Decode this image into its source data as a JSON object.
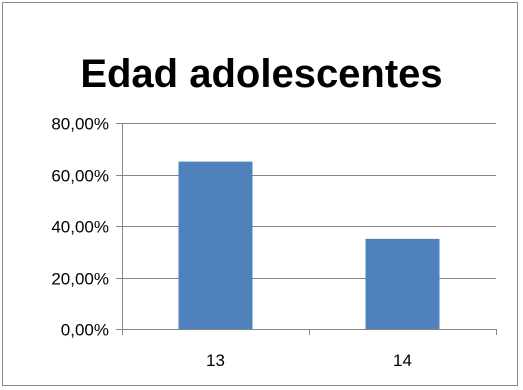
{
  "chart_data": {
    "type": "bar",
    "title": "Edad adolescentes",
    "categories": [
      "13",
      "14"
    ],
    "values": [
      0.65,
      0.35
    ],
    "ylim": [
      0,
      0.8
    ],
    "yticks": [
      0,
      0.2,
      0.4,
      0.6,
      0.8
    ],
    "ytick_labels": [
      "0,00%",
      "20,00%",
      "40,00%",
      "60,00%",
      "80,00%"
    ],
    "xlabel": "",
    "ylabel": "",
    "grid": true,
    "legend": "none",
    "bar_color": "#4F81BD",
    "grid_color": "#868686"
  }
}
